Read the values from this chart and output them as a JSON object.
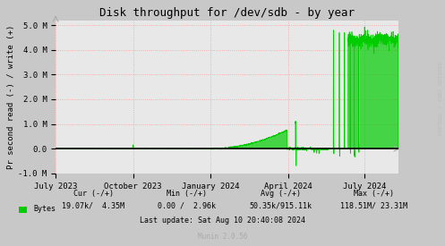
{
  "title": "Disk throughput for /dev/sdb - by year",
  "ylabel": "Pr second read (-) / write (+)",
  "background_color": "#c8c8c8",
  "plot_background_color": "#e8e8e8",
  "grid_color": "#ff9999",
  "line_color": "#00cc00",
  "zero_line_color": "#000000",
  "ylim": [
    -1000000,
    5200000
  ],
  "yticks": [
    -1000000,
    0,
    1000000,
    2000000,
    3000000,
    4000000,
    5000000
  ],
  "ytick_labels": [
    "-1.0 M",
    "0.0",
    "1.0 M",
    "2.0 M",
    "3.0 M",
    "4.0 M",
    "5.0 M"
  ],
  "xlim_start": 1688169600,
  "xlim_end": 1723334400,
  "xtick_positions": [
    1688169600,
    1696118400,
    1704067200,
    1712016000,
    1719878400
  ],
  "xtick_labels": [
    "July 2023",
    "October 2023",
    "January 2024",
    "April 2024",
    "July 2024"
  ],
  "legend_color": "#00cc00",
  "legend_label": "Bytes",
  "cur_label": "Cur (-/+)",
  "min_label": "Min (-/+)",
  "avg_label": "Avg (-/+)",
  "max_label": "Max (-/+)",
  "cur_val": "19.07k/  4.35M",
  "min_val": "0.00 /  2.96k",
  "avg_val": "50.35k/915.11k",
  "max_val": "118.51M/ 23.31M",
  "footer_line3": "Last update: Sat Aug 10 20:40:08 2024",
  "footer_munin": "Munin 2.0.56",
  "rrdtool_label": "RRDTOOL / TOBI OETIKER",
  "title_fontsize": 9,
  "axis_fontsize": 6.5,
  "footer_fontsize": 6,
  "munin_fontsize": 5.5
}
